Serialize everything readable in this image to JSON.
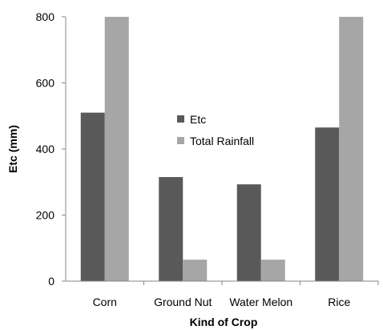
{
  "chart_data": {
    "type": "bar",
    "title": "",
    "xlabel": "Kind of Crop",
    "ylabel": "Etc (mm)",
    "ylim": [
      0,
      800
    ],
    "yticks": [
      0,
      200,
      400,
      600,
      800
    ],
    "grid": false,
    "legend_position": "center",
    "categories": [
      "Corn",
      "Ground Nut",
      "Water Melon",
      "Rice"
    ],
    "series": [
      {
        "name": "Etc",
        "color": "#595959",
        "values": [
          510,
          315,
          293,
          465
        ]
      },
      {
        "name": "Total Rainfall",
        "color": "#a6a6a6",
        "values": [
          800,
          65,
          65,
          800
        ]
      }
    ]
  }
}
